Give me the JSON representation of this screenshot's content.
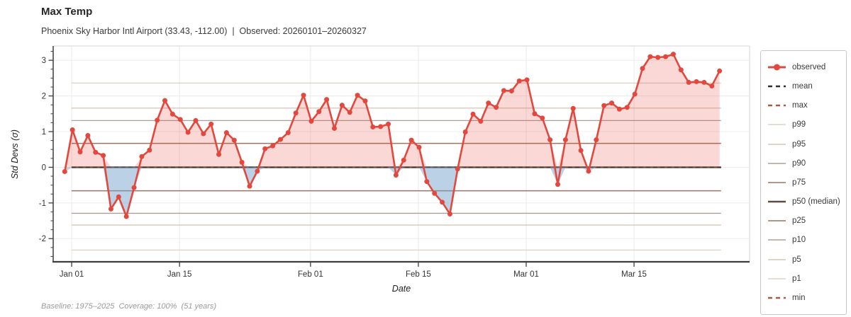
{
  "header": {
    "title": "Max Temp",
    "subtitle": "Phoenix Sky Harbor Intl Airport (33.43, -112.00)  |  Observed: 20260101–20260327"
  },
  "footer": {
    "note": "Baseline: 1975–2025  Coverage: 100%  (51 years)"
  },
  "chart_data": {
    "type": "line",
    "title": "Max Temp",
    "xlabel": "Date",
    "ylabel": "Std Devs (σ)",
    "start_date": "2026-01-01",
    "end_date": "2026-03-27",
    "ylim": [
      -2.65,
      3.4
    ],
    "grid": true,
    "x_ticks": [
      {
        "label": "Jan 01",
        "day": 0.9
      },
      {
        "label": "Jan 15",
        "day": 14.9
      },
      {
        "label": "Feb 01",
        "day": 31.9
      },
      {
        "label": "Feb 15",
        "day": 45.9
      },
      {
        "label": "Mar 01",
        "day": 59.9
      },
      {
        "label": "Mar 15",
        "day": 73.9
      }
    ],
    "y_ticks": {
      "major": [
        -2,
        -1,
        0,
        1,
        2,
        3
      ],
      "minor_step": 0.25
    },
    "series": [
      {
        "name": "observed",
        "color": "#e2483d",
        "marker": "circle",
        "values": [
          -0.12,
          1.05,
          0.43,
          0.89,
          0.42,
          0.33,
          -1.17,
          -0.83,
          -1.38,
          -0.57,
          0.3,
          0.48,
          1.32,
          1.87,
          1.49,
          1.34,
          0.98,
          1.31,
          0.94,
          1.21,
          0.36,
          0.97,
          0.76,
          0.14,
          -0.53,
          -0.11,
          0.52,
          0.6,
          0.78,
          0.97,
          1.52,
          2.02,
          1.29,
          1.56,
          1.9,
          1.09,
          1.74,
          1.54,
          2.02,
          1.86,
          1.13,
          1.14,
          1.21,
          -0.22,
          0.2,
          0.76,
          0.56,
          -0.4,
          -0.73,
          -0.98,
          -1.31,
          -0.05,
          0.99,
          1.49,
          1.29,
          1.8,
          1.68,
          2.15,
          2.14,
          2.42,
          2.45,
          1.5,
          1.38,
          0.77,
          -0.48,
          0.77,
          1.65,
          0.47,
          -0.11,
          0.77,
          1.73,
          1.8,
          1.63,
          1.68,
          2.05,
          2.77,
          3.1,
          3.08,
          3.1,
          3.17,
          2.73,
          2.38,
          2.4,
          2.38,
          2.28,
          2.7
        ]
      }
    ],
    "fills": {
      "above_zero_color": "rgba(226,72,61,0.21)",
      "below_zero_color": "rgba(120,163,205,0.5)"
    },
    "reference_lines": [
      {
        "label": "mean",
        "sigma": 0,
        "style": "dashed",
        "color": "#2f2f2f",
        "width": 1.6
      },
      {
        "label": "max",
        "sigma": null,
        "style": "dashed",
        "color": "#a65a40",
        "width": 1.6
      },
      {
        "label": "p99",
        "sigma": 2.36,
        "style": "solid",
        "color": "#ddd2c6",
        "width": 1.3
      },
      {
        "label": "p95",
        "sigma": 1.66,
        "style": "solid",
        "color": "#d5c5b3",
        "width": 1.3
      },
      {
        "label": "p90",
        "sigma": 1.31,
        "style": "solid",
        "color": "#aaa099",
        "width": 1.3
      },
      {
        "label": "p75",
        "sigma": 0.67,
        "style": "solid",
        "color": "#9b7361",
        "width": 1.5
      },
      {
        "label": "p50 (median)",
        "sigma": 0,
        "style": "solid",
        "color": "#634a3c",
        "width": 2.4
      },
      {
        "label": "p25",
        "sigma": -0.66,
        "style": "solid",
        "color": "#9b7361",
        "width": 1.5
      },
      {
        "label": "p10",
        "sigma": -1.29,
        "style": "solid",
        "color": "#aaa099",
        "width": 1.3
      },
      {
        "label": "p5",
        "sigma": -1.62,
        "style": "solid",
        "color": "#d5c5b3",
        "width": 1.3
      },
      {
        "label": "p1",
        "sigma": -2.32,
        "style": "solid",
        "color": "#ddd2c6",
        "width": 1.3
      },
      {
        "label": "min",
        "sigma": null,
        "style": "dashed",
        "color": "#a65a40",
        "width": 1.6
      }
    ],
    "legend_order": [
      "observed",
      "mean",
      "max",
      "p99",
      "p95",
      "p90",
      "p75",
      "p50 (median)",
      "p25",
      "p10",
      "p5",
      "p1",
      "min"
    ]
  }
}
